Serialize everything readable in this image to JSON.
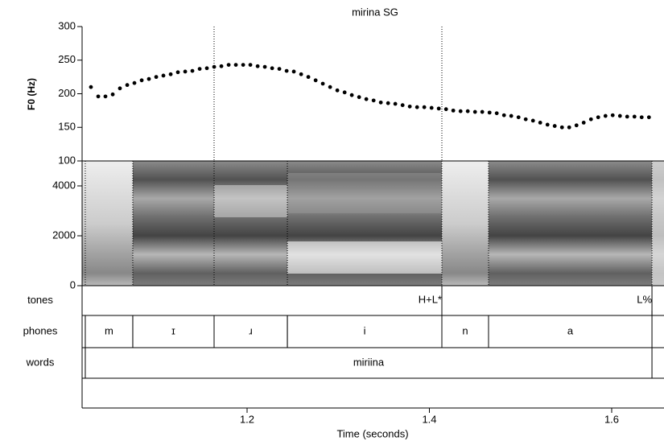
{
  "chart_data": {
    "type": "scatter",
    "title": "mirina SG",
    "ylabel": "F0 (Hz)",
    "xlabel": "Time (seconds)",
    "color": "#000000",
    "xlim": [
      1.019,
      1.6574
    ],
    "xticks": [
      1.2,
      1.4,
      1.6
    ],
    "ylim": [
      100,
      300
    ],
    "yticks": [
      100,
      150,
      200,
      250,
      300
    ],
    "x": [
      1.0287,
      1.0367,
      1.0446,
      1.0526,
      1.0605,
      1.0685,
      1.0764,
      1.0844,
      1.0923,
      1.1003,
      1.1082,
      1.1162,
      1.1241,
      1.1321,
      1.14,
      1.148,
      1.1559,
      1.1639,
      1.1718,
      1.1798,
      1.1877,
      1.1957,
      1.2036,
      1.2116,
      1.2195,
      1.2275,
      1.2354,
      1.2434,
      1.2513,
      1.2593,
      1.2672,
      1.2752,
      1.2831,
      1.2911,
      1.299,
      1.307,
      1.3149,
      1.3229,
      1.3308,
      1.3388,
      1.3467,
      1.3547,
      1.3626,
      1.3706,
      1.3785,
      1.3865,
      1.3944,
      1.4024,
      1.4103,
      1.4183,
      1.4262,
      1.4342,
      1.4421,
      1.4501,
      1.458,
      1.466,
      1.4739,
      1.4819,
      1.4898,
      1.4978,
      1.5057,
      1.5137,
      1.5216,
      1.5296,
      1.5375,
      1.5455,
      1.5534,
      1.5614,
      1.5693,
      1.5773,
      1.5852,
      1.5932,
      1.6011,
      1.6091,
      1.617,
      1.625,
      1.6329,
      1.6409
    ],
    "values": [
      210,
      196,
      196,
      199,
      208,
      213,
      216,
      220,
      222,
      225,
      227,
      229,
      232,
      233,
      234,
      237,
      238,
      240,
      241,
      243,
      243,
      243,
      243,
      241,
      240,
      238,
      237,
      234,
      233,
      229,
      225,
      220,
      215,
      210,
      205,
      202,
      198,
      195,
      192,
      190,
      187,
      186,
      185,
      183,
      181,
      180,
      180,
      179,
      178,
      177,
      175,
      174,
      174,
      173,
      173,
      172,
      171,
      168,
      167,
      165,
      162,
      160,
      157,
      154,
      152,
      150,
      150,
      153,
      157,
      162,
      165,
      167,
      168,
      167,
      166,
      166,
      165,
      165
    ],
    "spectrogram": {
      "ylim": [
        0,
        5000
      ],
      "yticks": [
        0,
        2000,
        4000
      ]
    },
    "tiers": [
      {
        "name": "tones",
        "points": [
          {
            "time": 1.4137,
            "label": "H+L*"
          },
          {
            "time": 1.6442,
            "label": "L%"
          }
        ]
      },
      {
        "name": "phones",
        "intervals": [
          {
            "start": 1.0225,
            "end": 1.0746,
            "label": "m"
          },
          {
            "start": 1.0746,
            "end": 1.1638,
            "label": "ɪ"
          },
          {
            "start": 1.1638,
            "end": 1.2442,
            "label": "ɹ"
          },
          {
            "start": 1.2442,
            "end": 1.4137,
            "label": "i"
          },
          {
            "start": 1.4137,
            "end": 1.4649,
            "label": "n"
          },
          {
            "start": 1.4649,
            "end": 1.6442,
            "label": "a"
          }
        ]
      },
      {
        "name": "words",
        "intervals": [
          {
            "start": 1.0225,
            "end": 1.6442,
            "label": "miriina"
          }
        ]
      }
    ]
  }
}
